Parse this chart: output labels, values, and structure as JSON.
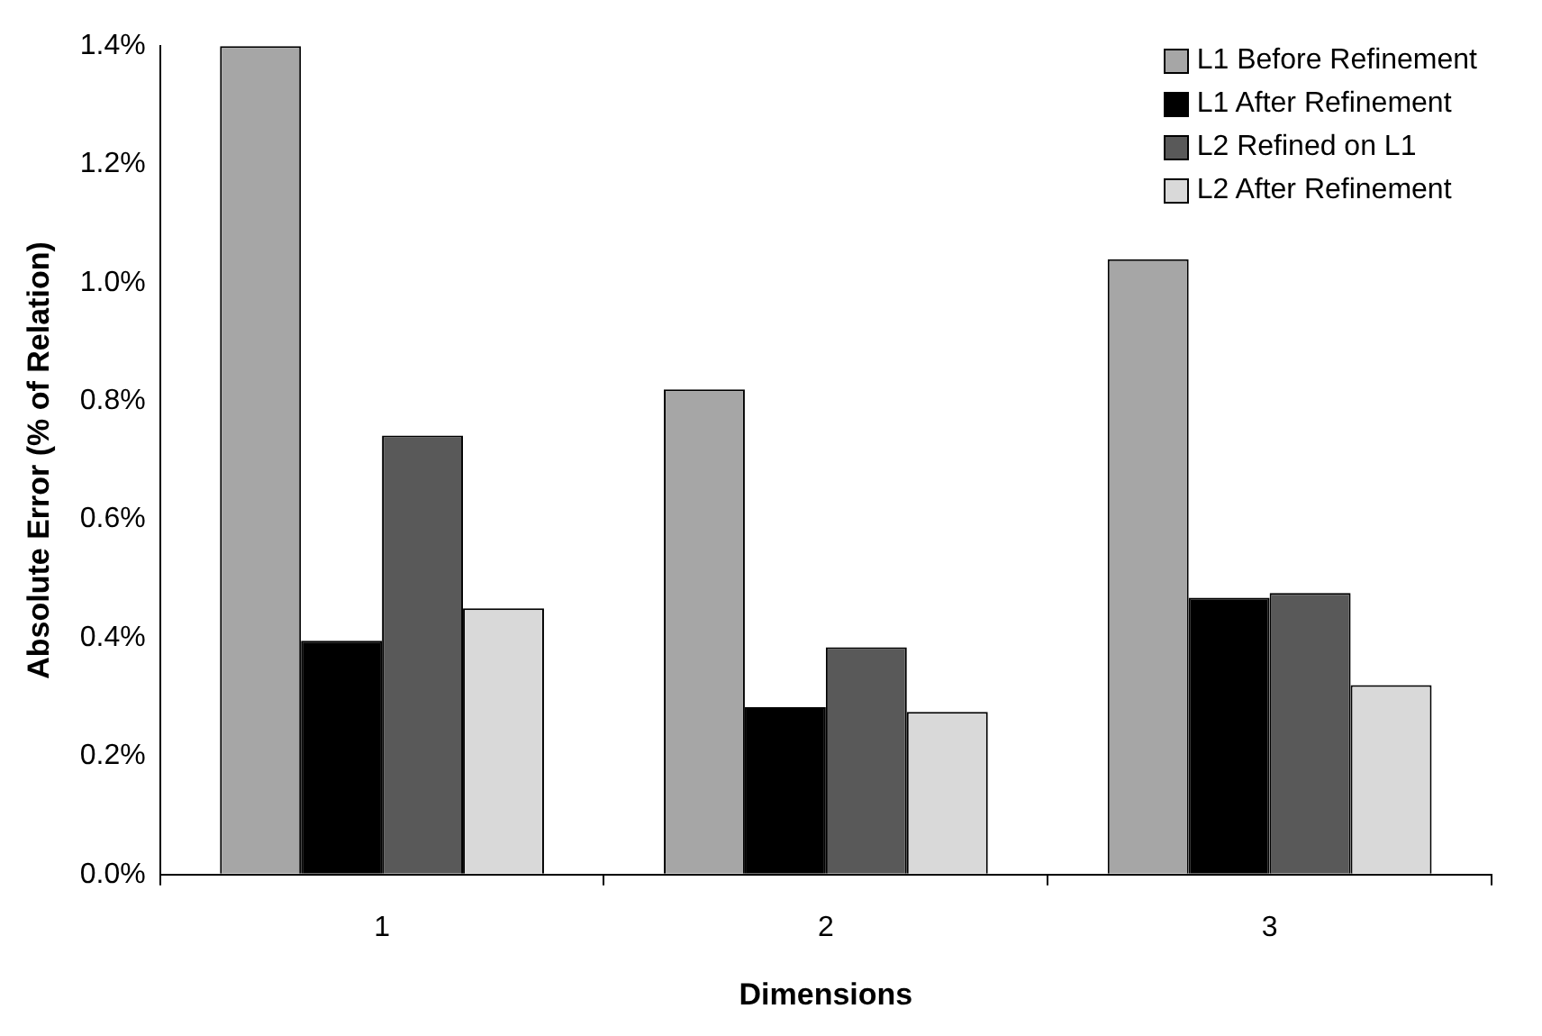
{
  "chart_data": {
    "type": "bar",
    "xlabel": "Dimensions",
    "ylabel": "Absolute Error (% of Relation)",
    "categories": [
      "1",
      "2",
      "3"
    ],
    "series": [
      {
        "name": "L1 Before Refinement",
        "color": "#a6a6a6",
        "values": [
          1.4,
          0.82,
          1.04
        ]
      },
      {
        "name": "L1 After Refinement",
        "color": "#000000",
        "values": [
          0.395,
          0.283,
          0.468
        ]
      },
      {
        "name": "L2 Refined on L1",
        "color": "#595959",
        "values": [
          0.742,
          0.384,
          0.476
        ]
      },
      {
        "name": "L2 After Refinement",
        "color": "#d9d9d9",
        "values": [
          0.45,
          0.275,
          0.32
        ]
      }
    ],
    "ylim": [
      0,
      1.4
    ],
    "yticks": [
      {
        "value": 0,
        "label": "0.0%"
      },
      {
        "value": 0.2,
        "label": "0.2%"
      },
      {
        "value": 0.4,
        "label": "0.4%"
      },
      {
        "value": 0.6,
        "label": "0.6%"
      },
      {
        "value": 0.8,
        "label": "0.8%"
      },
      {
        "value": 1.0,
        "label": "1.0%"
      },
      {
        "value": 1.2,
        "label": "1.2%"
      },
      {
        "value": 1.4,
        "label": "1.4%"
      }
    ],
    "grid": false,
    "legend": "top right"
  }
}
